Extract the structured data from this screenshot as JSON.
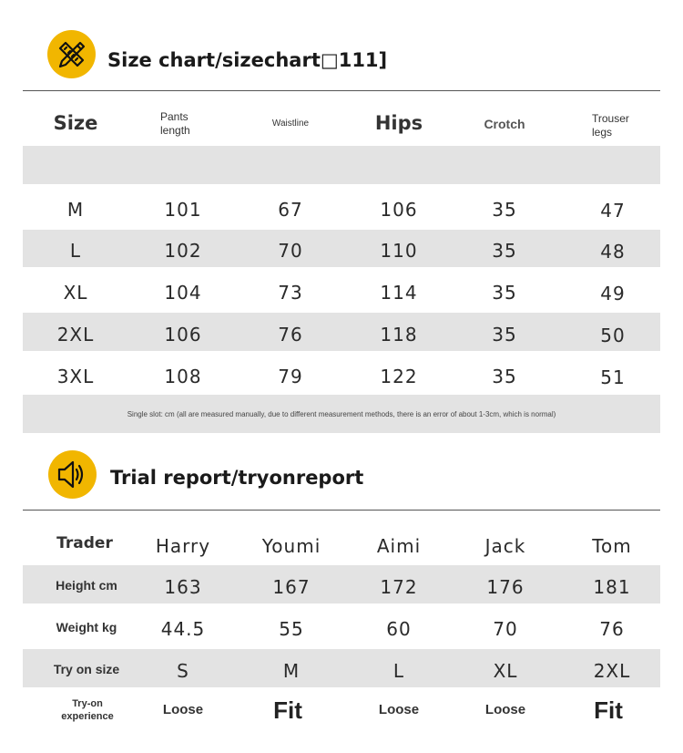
{
  "size_section": {
    "title": "Size chart/sizechart□111]",
    "icon": "pencil-ruler-icon",
    "headers": {
      "size": "Size",
      "pants_length": "Pants length",
      "waistline": "Waistline",
      "hips": "Hips",
      "crotch": "Crotch",
      "trouser_legs": "Trouser legs"
    },
    "rows": [
      [
        "M",
        "101",
        "67",
        "106",
        "35",
        "47"
      ],
      [
        "L",
        "102",
        "70",
        "110",
        "35",
        "48"
      ],
      [
        "XL",
        "104",
        "73",
        "114",
        "35",
        "49"
      ],
      [
        "2XL",
        "106",
        "76",
        "118",
        "35",
        "50"
      ],
      [
        "3XL",
        "108",
        "79",
        "122",
        "35",
        "51"
      ]
    ],
    "note": "Single slot: cm (all are measured manually, due to different measurement methods, there is an error of about 1-3cm, which is normal)"
  },
  "trial_section": {
    "title": "Trial report/tryonreport",
    "icon": "speaker-icon",
    "header_label": "Trader",
    "people": [
      "Harry",
      "Youmi",
      "Aimi",
      "Jack",
      "Tom"
    ],
    "rows": [
      {
        "label": "Height cm",
        "values": [
          "163",
          "167",
          "172",
          "176",
          "181"
        ]
      },
      {
        "label": "Weight kg",
        "values": [
          "44.5",
          "55",
          "60",
          "70",
          "76"
        ]
      },
      {
        "label": "Try on size",
        "values": [
          "S",
          "M",
          "L",
          "XL",
          "2XL"
        ]
      }
    ],
    "experience_label": "Try-on experience",
    "experience": [
      "Loose",
      "Fit",
      "Loose",
      "Loose",
      "Fit"
    ]
  },
  "colors": {
    "accent": "#f1b600",
    "band": "#e3e3e3"
  }
}
